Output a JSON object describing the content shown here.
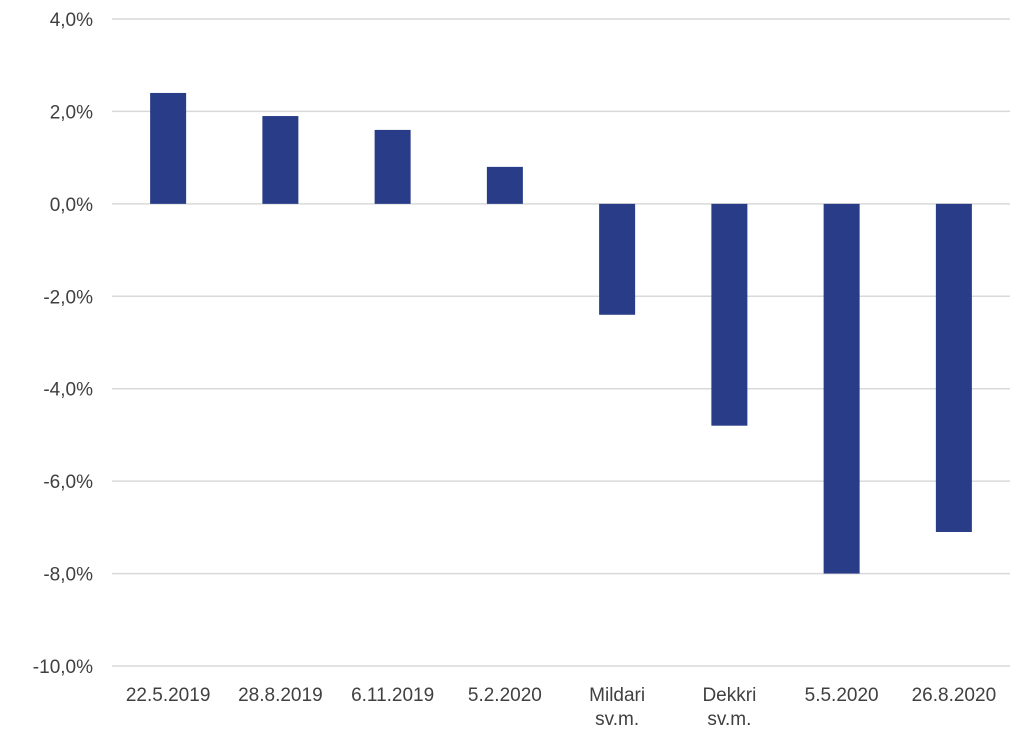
{
  "chart_data": {
    "type": "bar",
    "categories": [
      [
        "22.5.2019"
      ],
      [
        "28.8.2019"
      ],
      [
        "6.11.2019"
      ],
      [
        "5.2.2020"
      ],
      [
        "Mildari",
        "sv.m."
      ],
      [
        "Dekkri",
        "sv.m."
      ],
      [
        "5.5.2020"
      ],
      [
        "26.8.2020"
      ]
    ],
    "values": [
      2.4,
      1.9,
      1.6,
      0.8,
      -2.4,
      -4.8,
      -8.0,
      -7.1
    ],
    "title": "",
    "xlabel": "",
    "ylabel": "",
    "ylim": [
      -10,
      4
    ],
    "yticks": [
      4,
      2,
      0,
      -2,
      -4,
      -6,
      -8,
      -10
    ],
    "ytick_labels": [
      "4,0%",
      "2,0%",
      "0,0%",
      "-2,0%",
      "-4,0%",
      "-6,0%",
      "-8,0%",
      "-10,0%"
    ],
    "grid": true,
    "legend": "none",
    "bar_color": "#283C87",
    "grid_color": "#d9d9d9"
  }
}
